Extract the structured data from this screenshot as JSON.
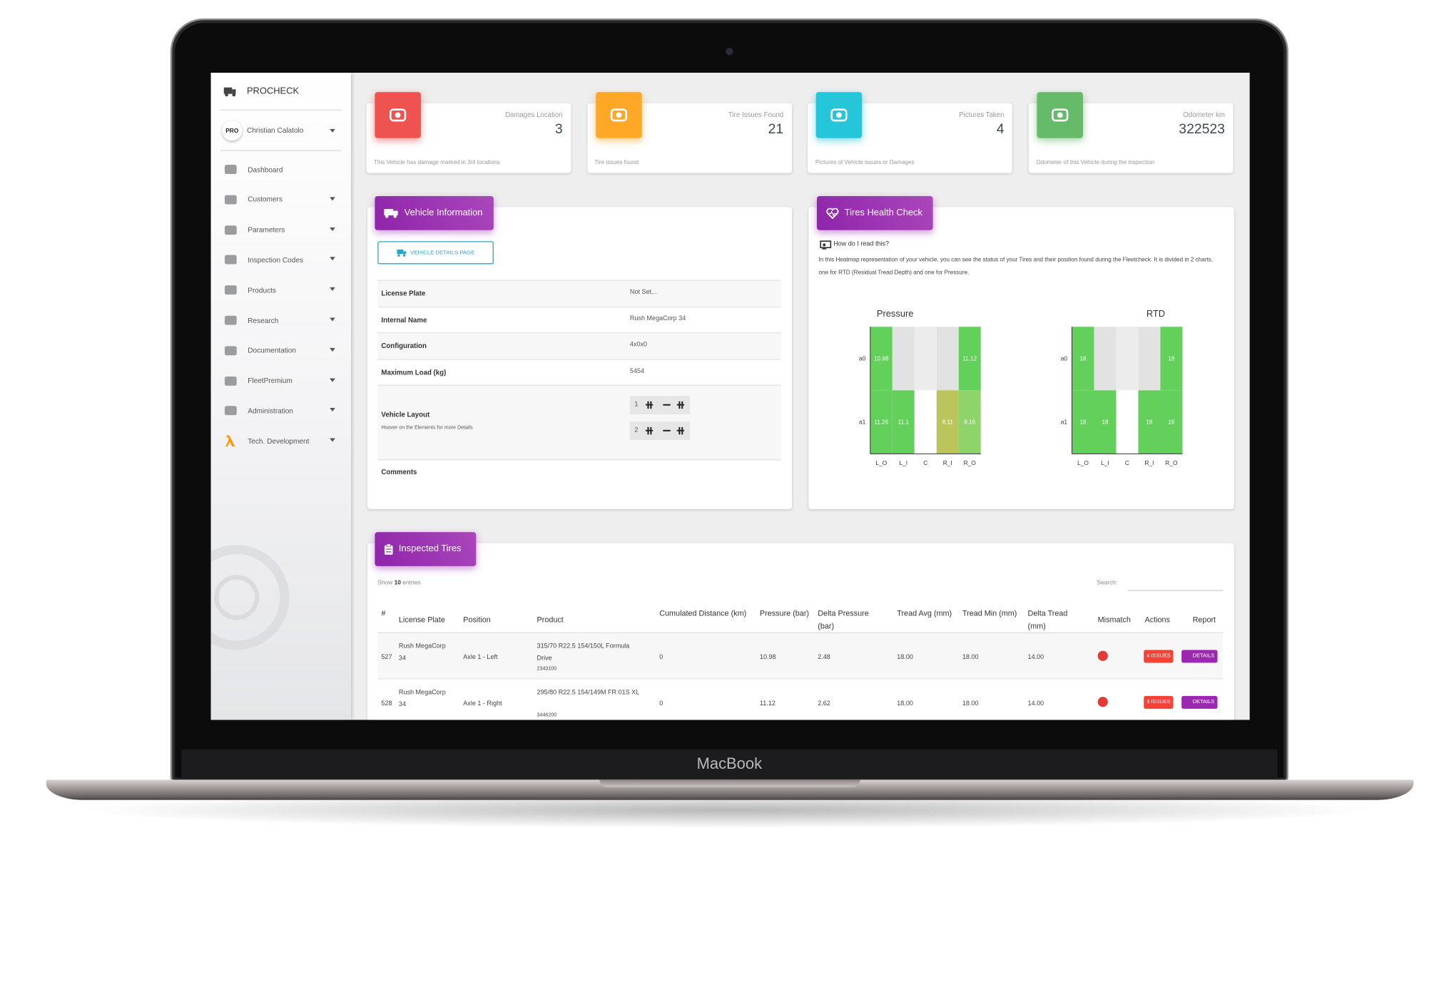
{
  "device": "MacBook",
  "sidebar": {
    "brand": "PROCHECK",
    "badge": "PRO",
    "user": "Christian Calatolo",
    "menu": [
      "Dashboard",
      "Customers",
      "Parameters",
      "Inspection Codes",
      "Products",
      "Research",
      "Documentation",
      "FleetPremium",
      "Administration",
      "Tech. Development"
    ]
  },
  "stats": [
    {
      "label": "Damages Location",
      "value": 3,
      "footer": "This Vehicle has damage marked in 3/4  locations",
      "color": "#ef5350"
    },
    {
      "label": "Tire Issues Found",
      "value": 21,
      "footer": "Tire issues found",
      "color": "#ffa726"
    },
    {
      "label": "Pictures Taken",
      "value": 4,
      "footer": "Pictures of Vehicle issues or Damages",
      "color": "#26c6da"
    },
    {
      "label": "Odometer km",
      "value": 322523,
      "footer": "Odometer of this Vehicle during the inspection",
      "color": "#66bb6a"
    }
  ],
  "vehicle": {
    "title": "Vehicle Information",
    "button": "VEHICLE DETAILS PAGE",
    "rows": [
      [
        "License Plate",
        "Not Set..."
      ],
      [
        "Internal Name",
        "Rush MegaCorp 34"
      ],
      [
        "Configuration",
        "4x0x0"
      ],
      [
        "Maximum Load (kg)",
        "5454"
      ]
    ],
    "layout_label": "Vehicle Layout",
    "layout_hint": "Hoover on the Elements for more Details",
    "axles": [
      "1",
      "2"
    ],
    "comments": "Comments"
  },
  "health": {
    "title": "Tires Health Check",
    "question": "How do I read this?",
    "text": "In this Heatmap representation of your vehicle, you can see the status of your Tires and their position found during the Fleetcheck. It is divided in 2 charts, one for RTD (Residual Tread Depth) and one for Pressure.",
    "charts": [
      {
        "title": "Pressure",
        "rows": [
          "a0",
          "a1"
        ],
        "cols": [
          "L_O",
          "L_I",
          "C",
          "R_I",
          "R_O"
        ],
        "values": [
          [
            10.98,
            null,
            null,
            null,
            11.12
          ],
          [
            11.26,
            11.1,
            null,
            8.11,
            9.16
          ]
        ],
        "colors": [
          [
            "#62d05a",
            "#e2e2e2",
            "#ececec",
            "#e2e2e2",
            "#62d05a"
          ],
          [
            "#62d05a",
            "#62d05a",
            "#ffffff",
            "#bcc55c",
            "#8ed46a"
          ]
        ]
      },
      {
        "title": "RTD",
        "rows": [
          "a0",
          "a1"
        ],
        "cols": [
          "L_O",
          "L_I",
          "C",
          "R_I",
          "R_O"
        ],
        "values": [
          [
            18,
            null,
            null,
            null,
            18
          ],
          [
            18,
            18,
            null,
            18,
            18
          ]
        ],
        "colors": [
          [
            "#62d05a",
            "#e2e2e2",
            "#ececec",
            "#e2e2e2",
            "#62d05a"
          ],
          [
            "#62d05a",
            "#62d05a",
            "#ffffff",
            "#62d05a",
            "#62d05a"
          ]
        ]
      }
    ]
  },
  "table": {
    "title": "Inspected Tires",
    "show": "Show",
    "entries_count": "10",
    "entries": "entries",
    "search": "Search:",
    "headers": [
      "#",
      "License Plate",
      "Position",
      "Product",
      "Cumulated Distance (km)",
      "Pressure (bar)",
      "Delta Pressure (bar)",
      "Tread Avg (mm)",
      "Tread Min (mm)",
      "Delta Tread (mm)",
      "Mismatch",
      "Actions",
      "Report"
    ],
    "rows": [
      {
        "id": "527",
        "plate": "Rush MegaCorp 34",
        "position": "Axle 1 - Left",
        "product": "315/70 R22.5 154/150L Formula Drive",
        "code": "2343100",
        "distance": "0",
        "pressure": "10.98",
        "delta_pressure": "2.48",
        "tread_avg": "18.00",
        "tread_min": "18.00",
        "delta_tread": "14.00",
        "issues": "4 ISSUES",
        "details": "DETAILS"
      },
      {
        "id": "528",
        "plate": "Rush MegaCorp 34",
        "position": "Axle 1 - Right",
        "product": "295/80 R22.5 154/149M FR:01S XL",
        "code": "3446200",
        "distance": "0",
        "pressure": "11.12",
        "delta_pressure": "2.62",
        "tread_avg": "18.00",
        "tread_min": "18.00",
        "delta_tread": "14.00",
        "issues": "3 ISSUES",
        "details": "DETAILS"
      }
    ]
  }
}
